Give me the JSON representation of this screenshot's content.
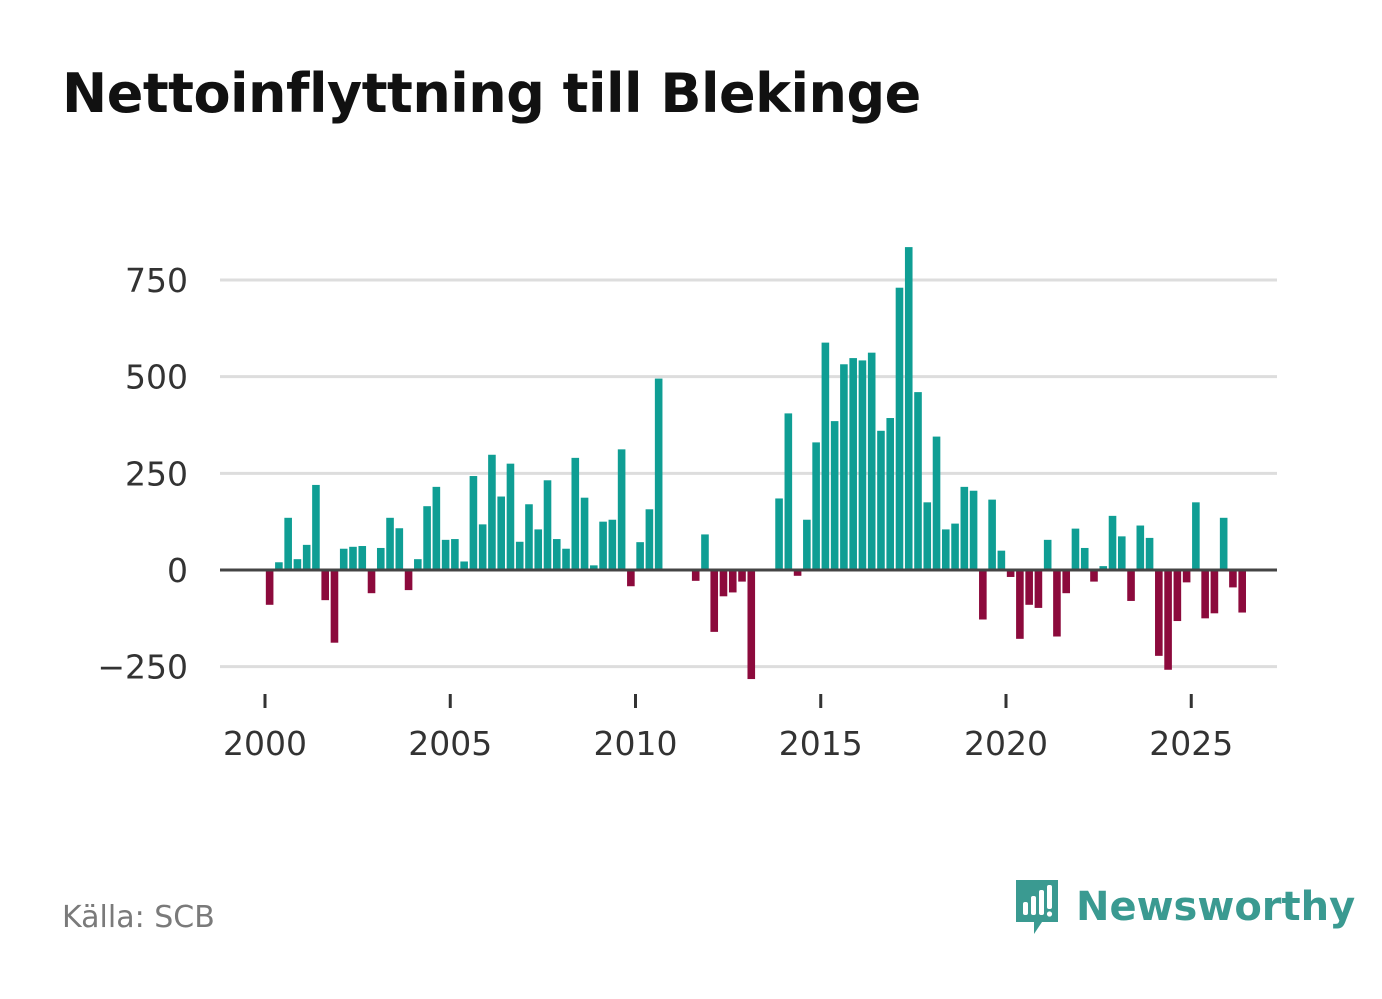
{
  "title": "Nettoinflyttning till Blekinge",
  "source": "Källa: SCB",
  "brand": {
    "name": "Newsworthy",
    "icon": "newsworthy-logo-icon"
  },
  "colors": {
    "positive": "#0f9e94",
    "negative": "#8c0a3c",
    "grid": "#dddddd",
    "zero_line": "#444444"
  },
  "chart_data": {
    "type": "bar",
    "title": "Nettoinflyttning till Blekinge",
    "xlabel": "",
    "ylabel": "",
    "ylim": [
      -340,
      840
    ],
    "xlim": [
      1998.6,
      2027.3
    ],
    "y_ticks": [
      -250,
      0,
      250,
      500,
      750
    ],
    "y_tick_labels": [
      "−250",
      "0",
      "250",
      "500",
      "750"
    ],
    "x_ticks": [
      2000,
      2005,
      2010,
      2015,
      2020,
      2025
    ],
    "x_tick_labels": [
      "2000",
      "2005",
      "2010",
      "2015",
      "2020",
      "2025"
    ],
    "period": "monthly-ish (quarterly steps, 4 per year), starting 2000",
    "x_start": 2000.125,
    "x_step": 0.25,
    "values": [
      -90,
      20,
      135,
      28,
      65,
      220,
      -78,
      -188,
      55,
      60,
      62,
      -60,
      57,
      135,
      108,
      -52,
      28,
      165,
      215,
      78,
      80,
      22,
      243,
      118,
      298,
      190,
      275,
      73,
      170,
      105,
      232,
      80,
      55,
      290,
      187,
      12,
      125,
      130,
      312,
      -42,
      72,
      157,
      495,
      0,
      0,
      0,
      -28,
      92,
      -160,
      -68,
      -58,
      -30,
      -282,
      0,
      0,
      185,
      405,
      -15,
      130,
      330,
      588,
      385,
      532,
      548,
      542,
      562,
      360,
      393,
      730,
      835,
      460,
      175,
      345,
      105,
      120,
      215,
      205,
      -128,
      182,
      50,
      -18,
      -178,
      -90,
      -98,
      78,
      -172,
      -60,
      107,
      57,
      -30,
      10,
      140,
      87,
      -80,
      115,
      83,
      -222,
      -258,
      -132,
      -32,
      175,
      -125,
      -112,
      135,
      -45,
      -110
    ]
  }
}
